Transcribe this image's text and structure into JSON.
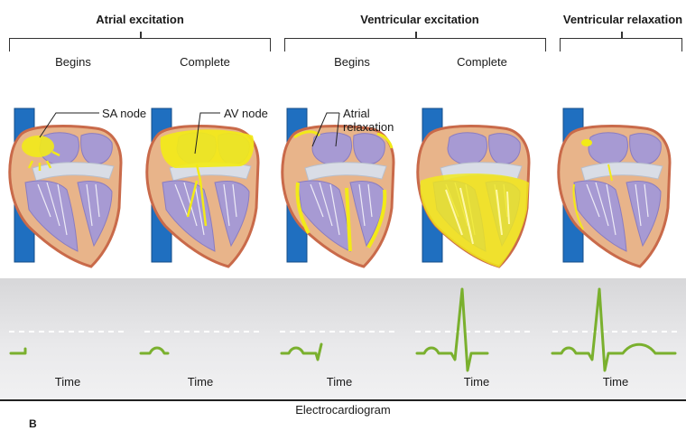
{
  "phases": [
    {
      "title": "Atrial excitation"
    },
    {
      "title": "Ventricular excitation"
    },
    {
      "title": "Ventricular relaxation"
    }
  ],
  "stages": [
    "Begins",
    "Complete",
    "Begins",
    "Complete"
  ],
  "callouts": {
    "sa_node": "SA node",
    "av_node": "AV node",
    "atrial_relaxation_1": "Atrial",
    "atrial_relaxation_2": "relaxation"
  },
  "ecg": {
    "time_label": "Time",
    "caption": "Electrocardiogram"
  },
  "panel_letter": "B",
  "colors": {
    "vena": "#1f6fc0",
    "muscle": "#e8b48a",
    "muscle_edge": "#c96a4a",
    "chamber": "#a79ad3",
    "valve": "#d9dde6",
    "excited": "#f2ea18",
    "ecg_trace": "#7ab02e",
    "baseline": "#ffffff"
  }
}
